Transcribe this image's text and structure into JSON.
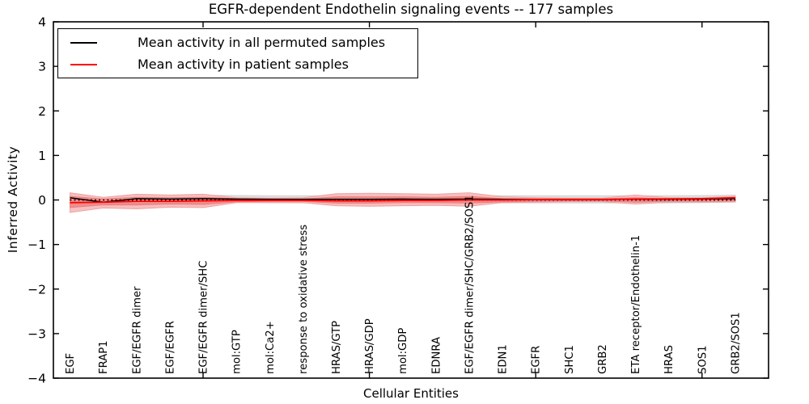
{
  "figure": {
    "title": "EGFR-dependent Endothelin signaling events -- 177 samples"
  },
  "chart_data": {
    "type": "line",
    "title": "EGFR-dependent Endothelin signaling events -- 177 samples",
    "xlabel": "Cellular Entities",
    "ylabel": "Inferred Activity",
    "ylim": [
      -4,
      4
    ],
    "yticks": [
      -4,
      -3,
      -2,
      -1,
      0,
      1,
      2,
      3,
      4
    ],
    "xticks_top_at": [
      5,
      10,
      15,
      20
    ],
    "grid": false,
    "legend_position": "upper left",
    "categories": [
      "EGF",
      "FRAP1",
      "EGF/EGFR dimer",
      "EGF/EGFR",
      "EGF/EGFR dimer/SHC",
      "mol:GTP",
      "mol:Ca2+",
      "response to oxidative stress",
      "HRAS/GTP",
      "HRAS/GDP",
      "mol:GDP",
      "EDNRA",
      "EGF/EGFR dimer/SHC/GRB2/SOS1",
      "EDN1",
      "EGFR",
      "SHC1",
      "GRB2",
      "ETA receptor/Endothelin-1",
      "HRAS",
      "SOS1",
      "GRB2/SOS1"
    ],
    "series": [
      {
        "name": "Mean activity in all permuted samples",
        "color": "#000000",
        "values": [
          0.05,
          -0.05,
          0.03,
          0.02,
          0.03,
          0.02,
          0.015,
          0.015,
          0.015,
          0.015,
          0.02,
          0.015,
          0.02,
          0.015,
          0.015,
          0.015,
          0.015,
          0.015,
          0.015,
          0.02,
          0.03
        ]
      },
      {
        "name": "Mean activity in patient samples",
        "color": "#ff0000",
        "values": [
          -0.06,
          -0.05,
          -0.03,
          -0.03,
          -0.02,
          -0.01,
          -0.01,
          -0.01,
          -0.02,
          -0.02,
          -0.01,
          -0.01,
          0.0,
          0.0,
          0.01,
          0.01,
          0.01,
          0.02,
          0.025,
          0.03,
          0.05
        ]
      }
    ],
    "bands": [
      {
        "name": "permuted-samples-range",
        "color": "#dedede",
        "edge": "#d2d2d2",
        "top": [
          0.13,
          0.03,
          0.11,
          0.1,
          0.11,
          0.1,
          0.095,
          0.095,
          0.095,
          0.095,
          0.1,
          0.095,
          0.1,
          0.095,
          0.095,
          0.095,
          0.095,
          0.095,
          0.095,
          0.1,
          0.11
        ],
        "bottom": [
          -0.03,
          -0.13,
          -0.05,
          -0.06,
          -0.05,
          -0.06,
          -0.065,
          -0.065,
          -0.065,
          -0.065,
          -0.06,
          -0.065,
          -0.06,
          -0.065,
          -0.065,
          -0.065,
          -0.065,
          -0.065,
          -0.065,
          -0.06,
          -0.05
        ]
      },
      {
        "name": "patient-samples-range-outer",
        "color": "#f7bcbc",
        "edge": "#efa2a2",
        "top": [
          0.16,
          0.06,
          0.13,
          0.11,
          0.13,
          0.05,
          0.04,
          0.05,
          0.14,
          0.15,
          0.14,
          0.13,
          0.16,
          0.07,
          0.05,
          0.04,
          0.04,
          0.11,
          0.05,
          0.05,
          0.08
        ],
        "bottom": [
          -0.28,
          -0.18,
          -0.2,
          -0.16,
          -0.17,
          -0.06,
          -0.05,
          -0.06,
          -0.13,
          -0.14,
          -0.13,
          -0.12,
          -0.14,
          -0.06,
          -0.05,
          -0.04,
          -0.04,
          -0.09,
          -0.05,
          -0.05,
          -0.04
        ]
      },
      {
        "name": "patient-samples-range-inner",
        "color": "#f08a8a",
        "edge": "#e87f7f",
        "top": [
          0.08,
          0.02,
          0.06,
          0.05,
          0.06,
          0.03,
          0.02,
          0.02,
          0.07,
          0.07,
          0.07,
          0.06,
          0.08,
          0.03,
          0.02,
          0.02,
          0.02,
          0.05,
          0.02,
          0.03,
          0.06
        ],
        "bottom": [
          -0.17,
          -0.11,
          -0.11,
          -0.09,
          -0.1,
          -0.04,
          -0.03,
          -0.03,
          -0.07,
          -0.07,
          -0.06,
          -0.06,
          -0.07,
          -0.04,
          -0.03,
          -0.02,
          -0.02,
          -0.05,
          -0.03,
          -0.03,
          -0.02
        ]
      }
    ],
    "zero_line": {
      "y": 0,
      "style": "dotted",
      "color": "#000000"
    }
  },
  "colors": {
    "frame": "#000000",
    "background": "#ffffff",
    "permuted_line": "#000000",
    "patient_line": "#ff0000",
    "band_outer": "#f7bcbc",
    "band_inner": "#f08a8a",
    "band_gray": "#dedede"
  }
}
